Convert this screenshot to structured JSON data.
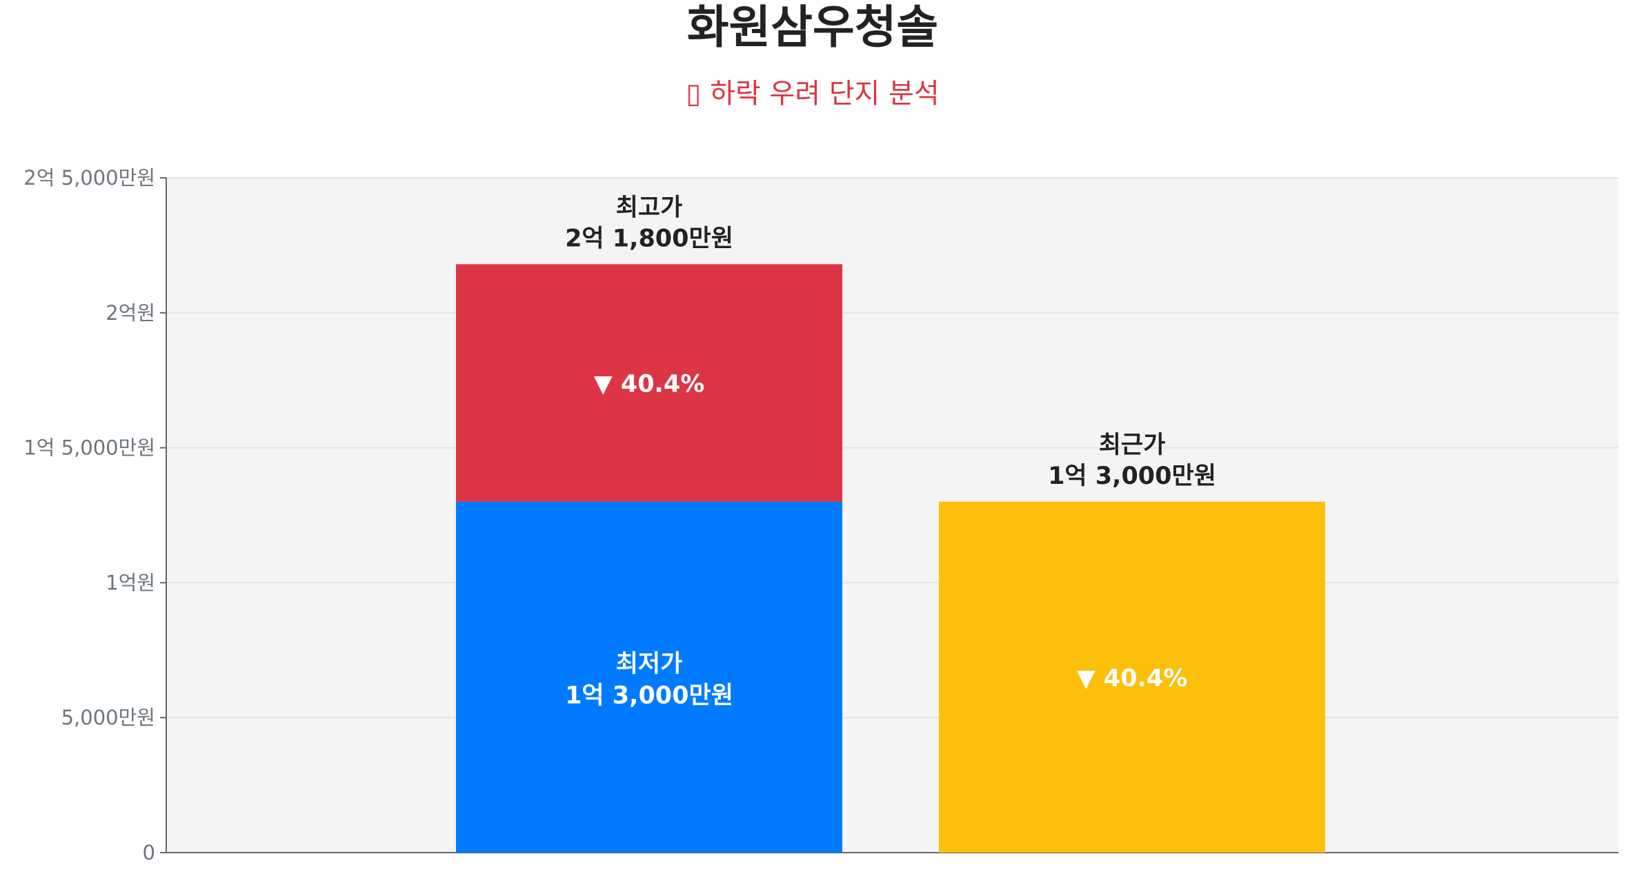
{
  "title": "화원삼우청솔",
  "subtitle": "▯ 하락 우려 단지 분석",
  "colors": {
    "high": "#dc3545",
    "low": "#007bff",
    "recent": "#fcbf0a",
    "plot_bg": "#f4f4f4",
    "grid": "#e4e4e4",
    "axis": "#666666"
  },
  "chart_data": {
    "type": "bar",
    "unit": "만원",
    "ylim": [
      0,
      25000
    ],
    "yticks": [
      {
        "value": 0,
        "label": "0"
      },
      {
        "value": 5000,
        "label": "5,000만원"
      },
      {
        "value": 10000,
        "label": "1억원"
      },
      {
        "value": 15000,
        "label": "1억 5,000만원"
      },
      {
        "value": 20000,
        "label": "2억원"
      },
      {
        "value": 25000,
        "label": "2억 5,000만원"
      }
    ],
    "grid": true,
    "bars": [
      {
        "segments": [
          {
            "key": "low",
            "value": 13000,
            "label": "최저가",
            "value_label": "1억 3,000만원"
          },
          {
            "key": "high",
            "value": 21800,
            "label": "최고가",
            "value_label": "2억 1,800만원",
            "change": "▼ 40.4%"
          }
        ]
      },
      {
        "segments": [
          {
            "key": "recent",
            "value": 13000,
            "label": "최근가",
            "value_label": "1억 3,000만원",
            "change": "▼ 40.4%"
          }
        ]
      }
    ]
  }
}
